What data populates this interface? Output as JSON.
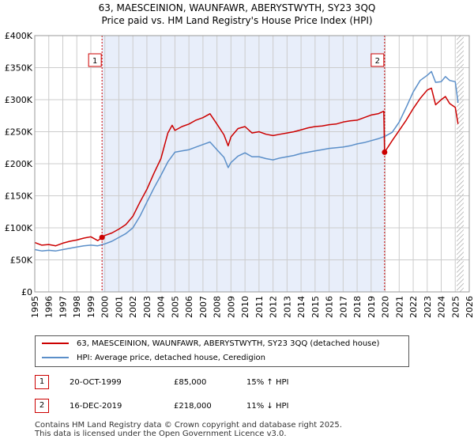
{
  "title_line1": "63, MAESCEINION, WAUNFAWR, ABERYSTWYTH, SY23 3QQ",
  "title_line2": "Price paid vs. HM Land Registry's House Price Index (HPI)",
  "chart_data": {
    "type": "line",
    "xlim": [
      1995,
      2026
    ],
    "ylim": [
      0,
      400000
    ],
    "y_ticks": [
      {
        "value": 0,
        "label": "£0"
      },
      {
        "value": 50000,
        "label": "£50K"
      },
      {
        "value": 100000,
        "label": "£100K"
      },
      {
        "value": 150000,
        "label": "£150K"
      },
      {
        "value": 200000,
        "label": "£200K"
      },
      {
        "value": 250000,
        "label": "£250K"
      },
      {
        "value": 300000,
        "label": "£300K"
      },
      {
        "value": 350000,
        "label": "£350K"
      },
      {
        "value": 400000,
        "label": "£400K"
      }
    ],
    "x_ticks": [
      "1995",
      "1996",
      "1997",
      "1998",
      "1999",
      "2000",
      "2001",
      "2002",
      "2003",
      "2004",
      "2005",
      "2006",
      "2007",
      "2008",
      "2009",
      "2010",
      "2011",
      "2012",
      "2013",
      "2014",
      "2015",
      "2016",
      "2017",
      "2018",
      "2019",
      "2020",
      "2021",
      "2022",
      "2023",
      "2024",
      "2025",
      "2026"
    ],
    "shaded_region": [
      1999.8,
      2019.96
    ],
    "hatched_from": 2025.1,
    "sale_markers": [
      {
        "label": "1",
        "x": 1999.8,
        "y": 85000
      },
      {
        "label": "2",
        "x": 2019.96,
        "y": 218000
      }
    ],
    "series": [
      {
        "name": "price_paid",
        "color": "#cc0000",
        "x": [
          1995.0,
          1995.5,
          1996.0,
          1996.5,
          1997.0,
          1997.5,
          1998.0,
          1998.5,
          1999.0,
          1999.5,
          1999.8,
          2000.0,
          2000.5,
          2001.0,
          2001.5,
          2002.0,
          2002.5,
          2003.0,
          2003.5,
          2004.0,
          2004.5,
          2004.8,
          2005.0,
          2005.5,
          2006.0,
          2006.5,
          2007.0,
          2007.5,
          2008.0,
          2008.5,
          2008.8,
          2009.0,
          2009.5,
          2010.0,
          2010.5,
          2011.0,
          2011.5,
          2012.0,
          2012.5,
          2013.0,
          2013.5,
          2014.0,
          2014.5,
          2015.0,
          2015.5,
          2016.0,
          2016.5,
          2017.0,
          2017.5,
          2018.0,
          2018.5,
          2019.0,
          2019.5,
          2019.9,
          2019.96,
          2020.2,
          2020.5,
          2021.0,
          2021.5,
          2022.0,
          2022.5,
          2023.0,
          2023.3,
          2023.6,
          2024.0,
          2024.3,
          2024.6,
          2025.0,
          2025.2
        ],
        "y": [
          77000,
          73000,
          74000,
          72000,
          76000,
          79000,
          81000,
          84000,
          86000,
          80000,
          85000,
          88000,
          92000,
          98000,
          105000,
          118000,
          140000,
          160000,
          185000,
          208000,
          248000,
          260000,
          252000,
          258000,
          262000,
          268000,
          272000,
          278000,
          262000,
          245000,
          228000,
          242000,
          255000,
          258000,
          248000,
          250000,
          246000,
          244000,
          246000,
          248000,
          250000,
          253000,
          256000,
          258000,
          259000,
          261000,
          262000,
          265000,
          267000,
          268000,
          272000,
          276000,
          278000,
          282000,
          218000,
          226000,
          236000,
          252000,
          268000,
          286000,
          302000,
          315000,
          318000,
          292000,
          300000,
          305000,
          294000,
          288000,
          262000
        ]
      },
      {
        "name": "hpi",
        "color": "#5b8fc9",
        "x": [
          1995.0,
          1995.5,
          1996.0,
          1996.5,
          1997.0,
          1997.5,
          1998.0,
          1998.5,
          1999.0,
          1999.5,
          2000.0,
          2000.5,
          2001.0,
          2001.5,
          2002.0,
          2002.5,
          2003.0,
          2003.5,
          2004.0,
          2004.5,
          2005.0,
          2005.5,
          2006.0,
          2006.5,
          2007.0,
          2007.5,
          2008.0,
          2008.5,
          2008.8,
          2009.0,
          2009.5,
          2010.0,
          2010.5,
          2011.0,
          2011.5,
          2012.0,
          2012.5,
          2013.0,
          2013.5,
          2014.0,
          2014.5,
          2015.0,
          2015.5,
          2016.0,
          2016.5,
          2017.0,
          2017.5,
          2018.0,
          2018.5,
          2019.0,
          2019.5,
          2020.0,
          2020.5,
          2021.0,
          2021.5,
          2022.0,
          2022.5,
          2023.0,
          2023.3,
          2023.6,
          2024.0,
          2024.3,
          2024.6,
          2025.0,
          2025.2
        ],
        "y": [
          66000,
          64000,
          65000,
          64000,
          66000,
          68000,
          70000,
          72000,
          73000,
          72000,
          75000,
          79000,
          85000,
          91000,
          100000,
          118000,
          140000,
          162000,
          182000,
          203000,
          218000,
          220000,
          222000,
          226000,
          230000,
          234000,
          222000,
          210000,
          194000,
          202000,
          212000,
          217000,
          211000,
          211000,
          208000,
          206000,
          209000,
          211000,
          213000,
          216000,
          218000,
          220000,
          222000,
          224000,
          225000,
          226000,
          228000,
          231000,
          233000,
          236000,
          239000,
          243000,
          249000,
          265000,
          288000,
          312000,
          330000,
          338000,
          344000,
          327000,
          328000,
          336000,
          330000,
          328000,
          295000
        ]
      }
    ]
  },
  "legend": {
    "price_paid_label": "63, MAESCEINION, WAUNFAWR, ABERYSTWYTH, SY23 3QQ (detached house)",
    "hpi_label": "HPI: Average price, detached house, Ceredigion"
  },
  "sales": [
    {
      "badge": "1",
      "date": "20-OCT-1999",
      "price": "£85,000",
      "hpi_change": "15% ↑ HPI"
    },
    {
      "badge": "2",
      "date": "16-DEC-2019",
      "price": "£218,000",
      "hpi_change": "11% ↓ HPI"
    }
  ],
  "footer": {
    "line1": "Contains HM Land Registry data © Crown copyright and database right 2025.",
    "line2": "This data is licensed under the Open Government Licence v3.0."
  },
  "colors": {
    "price_paid": "#cc0000",
    "hpi": "#5b8fc9",
    "shade": "#e8eefa",
    "grid": "#cccccc"
  }
}
